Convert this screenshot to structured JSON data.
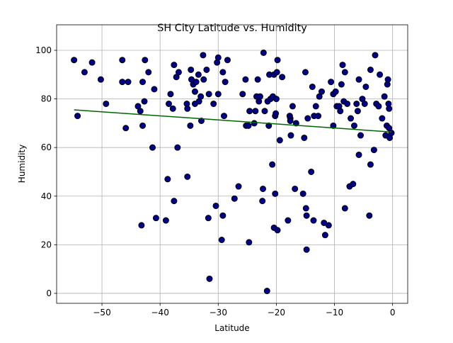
{
  "chart_data": {
    "type": "scatter",
    "title": "SH City Latitude vs. Humidity",
    "x_label": "Latitude",
    "y_label": "Humidity",
    "xlim": [
      -57.8,
      2.6
    ],
    "ylim": [
      -4.1,
      110.5
    ],
    "xticks": [
      {
        "value": -50,
        "label": "−50"
      },
      {
        "value": -40,
        "label": "−40"
      },
      {
        "value": -30,
        "label": "−30"
      },
      {
        "value": -20,
        "label": "−20"
      },
      {
        "value": -10,
        "label": "−10"
      },
      0
    ],
    "yticks": [
      0,
      20,
      40,
      60,
      80,
      100
    ],
    "grid": true,
    "color": "#00008b",
    "edge_color": "#000000",
    "x": [
      -54.8,
      -54.2,
      -53,
      -51.7,
      -50.2,
      -49.3,
      -46.5,
      -46.5,
      -45.9,
      -45.5,
      -43.8,
      -43.4,
      -43.2,
      -43,
      -43,
      -42.7,
      -42.6,
      -42,
      -41.3,
      -41,
      -40.7,
      -39,
      -38.7,
      -38.5,
      -38.2,
      -37.8,
      -37.6,
      -37.6,
      -37.2,
      -37,
      -36.8,
      -35.4,
      -35.3,
      -35.3,
      -34.8,
      -34.7,
      -34.6,
      -34.3,
      -34,
      -34,
      -33.8,
      -33.4,
      -33.3,
      -33,
      -32.9,
      -32.6,
      -32.5,
      -32,
      -31.7,
      -31.5,
      -31.6,
      -30.8,
      -30.4,
      -30.2,
      -30,
      -30,
      -29.4,
      -29.2,
      -29.2,
      -29,
      -28.8,
      -28.4,
      -27.2,
      -26.5,
      -25.8,
      -25.3,
      -25.2,
      -24.8,
      -24.7,
      -24.6,
      -23.8,
      -23.6,
      -23.4,
      -23.2,
      -23,
      -22.8,
      -22.4,
      -22.3,
      -22.2,
      -22,
      -21.6,
      -21.5,
      -21.3,
      -21.2,
      -21,
      -20.7,
      -20.6,
      -20.4,
      -20.4,
      -20.2,
      -20.2,
      -20.1,
      -20,
      -19.9,
      -19.8,
      -19.8,
      -19.4,
      -19,
      -18,
      -17.7,
      -17.6,
      -17.6,
      -17.5,
      -17.2,
      -16.8,
      -16.6,
      -15.4,
      -15.2,
      -15,
      -14.9,
      -14.8,
      -14.8,
      -14.6,
      -14,
      -13.8,
      -13.6,
      -13.5,
      -13.2,
      -12.8,
      -12.6,
      -12.2,
      -11.8,
      -11.6,
      -11,
      -10.6,
      -10.2,
      -10.2,
      -9.8,
      -9.6,
      -9.2,
      -9,
      -8.8,
      -8.6,
      -8.4,
      -8.2,
      -8.2,
      -7.8,
      -7.4,
      -7.2,
      -6.8,
      -6.6,
      -6.2,
      -6,
      -5.8,
      -5.8,
      -5.5,
      -5.2,
      -4.8,
      -4.6,
      -4,
      -3.8,
      -3.8,
      -3.2,
      -3,
      -2.8,
      -2.4,
      -2.2,
      -1.8,
      -1.4,
      -1.2,
      -1,
      -0.9,
      -0.8,
      -0.7,
      -0.6,
      -0.6,
      -0.5,
      -0.2
    ],
    "values": [
      96,
      73,
      91,
      95,
      88,
      78,
      96,
      87,
      68,
      87,
      77,
      75,
      28,
      87,
      69,
      79,
      96,
      91,
      60,
      84,
      31,
      30,
      47,
      78,
      82,
      76,
      94,
      38,
      89,
      60,
      91,
      78,
      48,
      76,
      69,
      92,
      88,
      86,
      83,
      78,
      87,
      90,
      79,
      81,
      71,
      98,
      88,
      92,
      31,
      6,
      82,
      78,
      36,
      95,
      82,
      97,
      22,
      32,
      91,
      73,
      87,
      96,
      39,
      44,
      82,
      88,
      69,
      69,
      21,
      75,
      70,
      75,
      81,
      88,
      79,
      81,
      38,
      43,
      99,
      75,
      1,
      79,
      69,
      90,
      80,
      53,
      81,
      90,
      27,
      41,
      73,
      74,
      80,
      91,
      96,
      26,
      63,
      89,
      30,
      73,
      72,
      71,
      65,
      77,
      43,
      70,
      41,
      64,
      91,
      35,
      32,
      18,
      72,
      50,
      85,
      30,
      73,
      77,
      73,
      81,
      83,
      29,
      24,
      28,
      87,
      69,
      82,
      83,
      77,
      77,
      75,
      86,
      94,
      79,
      91,
      35,
      78,
      44,
      72,
      45,
      69,
      78,
      75,
      57,
      88,
      65,
      80,
      78,
      85,
      32,
      92,
      53,
      59,
      98,
      78,
      77,
      90,
      72,
      81,
      65,
      69,
      86,
      88,
      78,
      68,
      76,
      64,
      66
    ],
    "regression": {
      "x": [
        -54.8,
        -0.2
      ],
      "values": [
        75.5,
        66.4
      ],
      "color": "#006400"
    }
  }
}
